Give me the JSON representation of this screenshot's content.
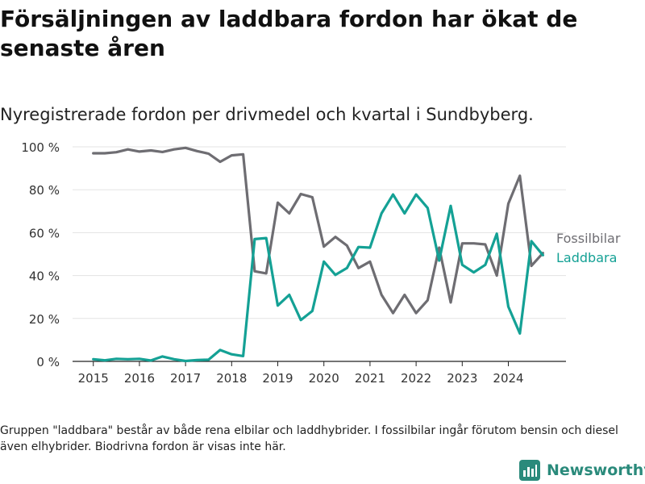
{
  "header": {
    "title": "Försäljningen av laddbara fordon har ökat de senaste åren",
    "subtitle": "Nyregistrerade fordon per drivmedel och kvartal i Sundbyberg."
  },
  "footer": {
    "note": "Gruppen \"laddbara\" består av både rena elbilar och laddhybrider. I fossilbilar ingår förutom bensin och diesel även elhybrider. Biodrivna fordon är visas inte här.",
    "brand": "Newsworthy"
  },
  "colors": {
    "fossil": "#6e6d72",
    "laddbara": "#14a195",
    "grid": "#e3e3e3",
    "brand": "#2a8a7b"
  },
  "chart_data": {
    "type": "line",
    "title": "Nyregistrerade fordon per drivmedel och kvartal i Sundbyberg.",
    "xlabel": "",
    "ylabel": "",
    "ylim": [
      0,
      100
    ],
    "y_ticks": [
      0,
      20,
      40,
      60,
      80,
      100
    ],
    "y_tick_labels": [
      "0 %",
      "20 %",
      "40 %",
      "60 %",
      "80 %",
      "100 %"
    ],
    "x_ticks": [
      2015,
      2016,
      2017,
      2018,
      2019,
      2020,
      2021,
      2022,
      2023,
      2024
    ],
    "x_tick_labels": [
      "2015",
      "2016",
      "2017",
      "2018",
      "2019",
      "2020",
      "2021",
      "2022",
      "2023",
      "2024"
    ],
    "x": [
      2015.0,
      2015.25,
      2015.5,
      2015.75,
      2016.0,
      2016.25,
      2016.5,
      2016.75,
      2017.0,
      2017.25,
      2017.5,
      2017.75,
      2018.0,
      2018.25,
      2018.5,
      2018.75,
      2019.0,
      2019.25,
      2019.5,
      2019.75,
      2020.0,
      2020.25,
      2020.5,
      2020.75,
      2021.0,
      2021.25,
      2021.5,
      2021.75,
      2022.0,
      2022.25,
      2022.5,
      2022.75,
      2023.0,
      2023.25,
      2023.5,
      2023.75,
      2024.0,
      2024.25,
      2024.5,
      2024.75
    ],
    "series": [
      {
        "name": "Fossilbilar",
        "values": [
          97,
          97,
          97.5,
          98.8,
          97.8,
          98.3,
          97.6,
          98.8,
          99.5,
          98,
          96.8,
          93,
          96,
          96.5,
          42,
          41,
          74,
          69,
          78,
          76.5,
          53.5,
          58,
          54,
          43.5,
          46.5,
          31,
          22.5,
          31,
          22.5,
          28.5,
          53,
          27.5,
          55,
          55,
          54.5,
          40,
          73.5,
          86.5,
          44.5,
          50.5
        ]
      },
      {
        "name": "Laddbara",
        "values": [
          1,
          0.5,
          1.2,
          1,
          1.2,
          0.4,
          2.3,
          1,
          0.2,
          0.6,
          0.8,
          5.3,
          3.3,
          2.5,
          57,
          57.5,
          26,
          31,
          19.3,
          23.5,
          46.5,
          40.3,
          43.5,
          53.3,
          53,
          69,
          77.8,
          69,
          77.8,
          71.5,
          47,
          72.5,
          45,
          41.5,
          45,
          59.5,
          25.5,
          13,
          56,
          49.5
        ]
      }
    ]
  }
}
